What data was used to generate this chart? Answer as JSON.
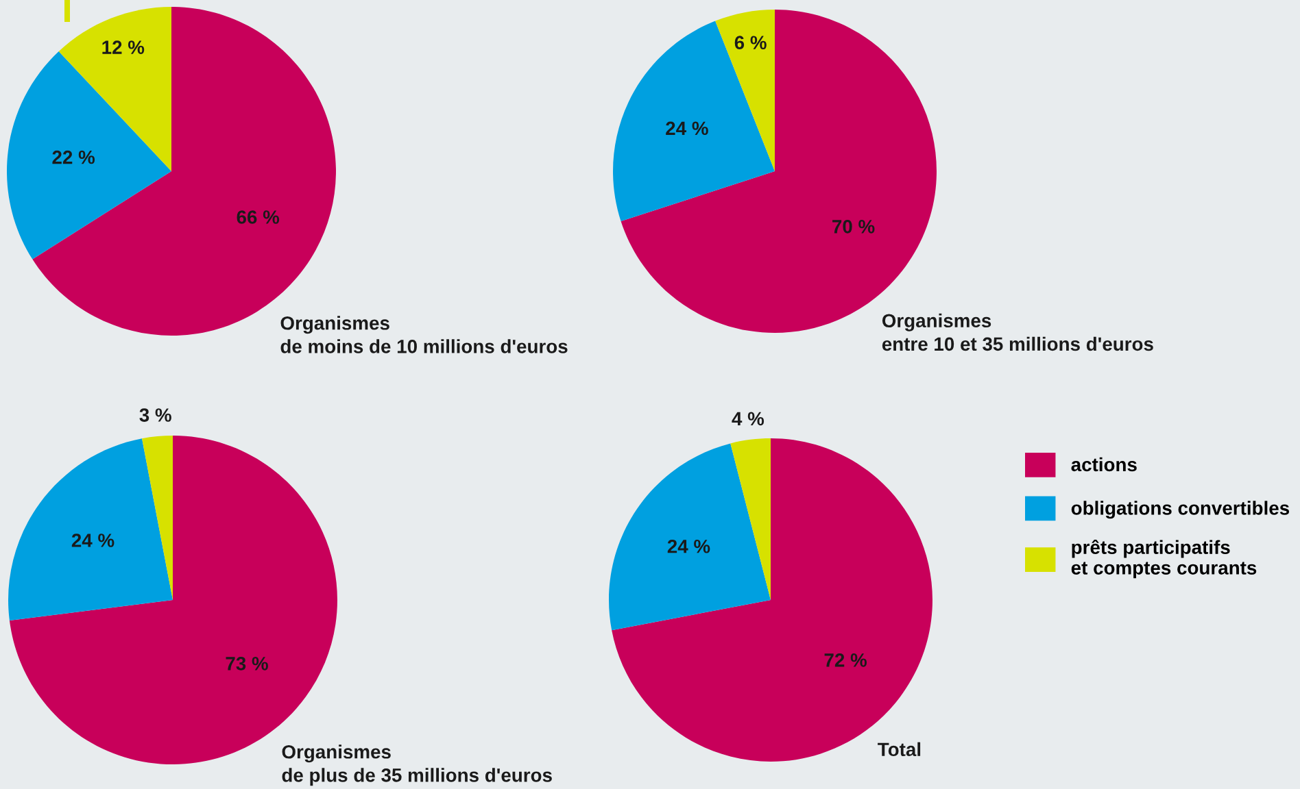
{
  "chart_data": [
    {
      "type": "pie",
      "title": "Organismes\nde moins de 10 millions d'euros",
      "categories": [
        "actions",
        "obligations convertibles",
        "prêts participatifs\net comptes courants"
      ],
      "values": [
        66,
        22,
        12
      ],
      "value_labels": [
        "66 %",
        "22 %",
        "12 %"
      ],
      "colors": [
        "#c8005a",
        "#00a0e0",
        "#d7e100"
      ],
      "legend": "right"
    },
    {
      "type": "pie",
      "title": "Organismes\nentre 10 et 35 millions d'euros",
      "categories": [
        null,
        null,
        null
      ],
      "values": [
        70,
        24,
        6
      ],
      "value_labels": [
        "70 %",
        "24 %",
        "6 %"
      ],
      "colors": [
        "#c8005a",
        "#00a0e0",
        "#d7e100"
      ]
    },
    {
      "type": "pie",
      "title": "Organismes\nde plus de 35 millions d'euros",
      "categories": [
        null,
        null,
        null
      ],
      "values": [
        73,
        24,
        3
      ],
      "value_labels": [
        "73 %",
        "24 %",
        "3 %"
      ],
      "colors": [
        "#c8005a",
        "#00a0e0",
        "#d7e100"
      ]
    },
    {
      "type": "pie",
      "title": "Total",
      "categories": [
        null,
        null,
        null
      ],
      "values": [
        72,
        24,
        4
      ],
      "value_labels": [
        "72 %",
        "24 %",
        "4 %"
      ],
      "colors": [
        "#c8005a",
        "#00a0e0",
        "#d7e100"
      ]
    }
  ]
}
